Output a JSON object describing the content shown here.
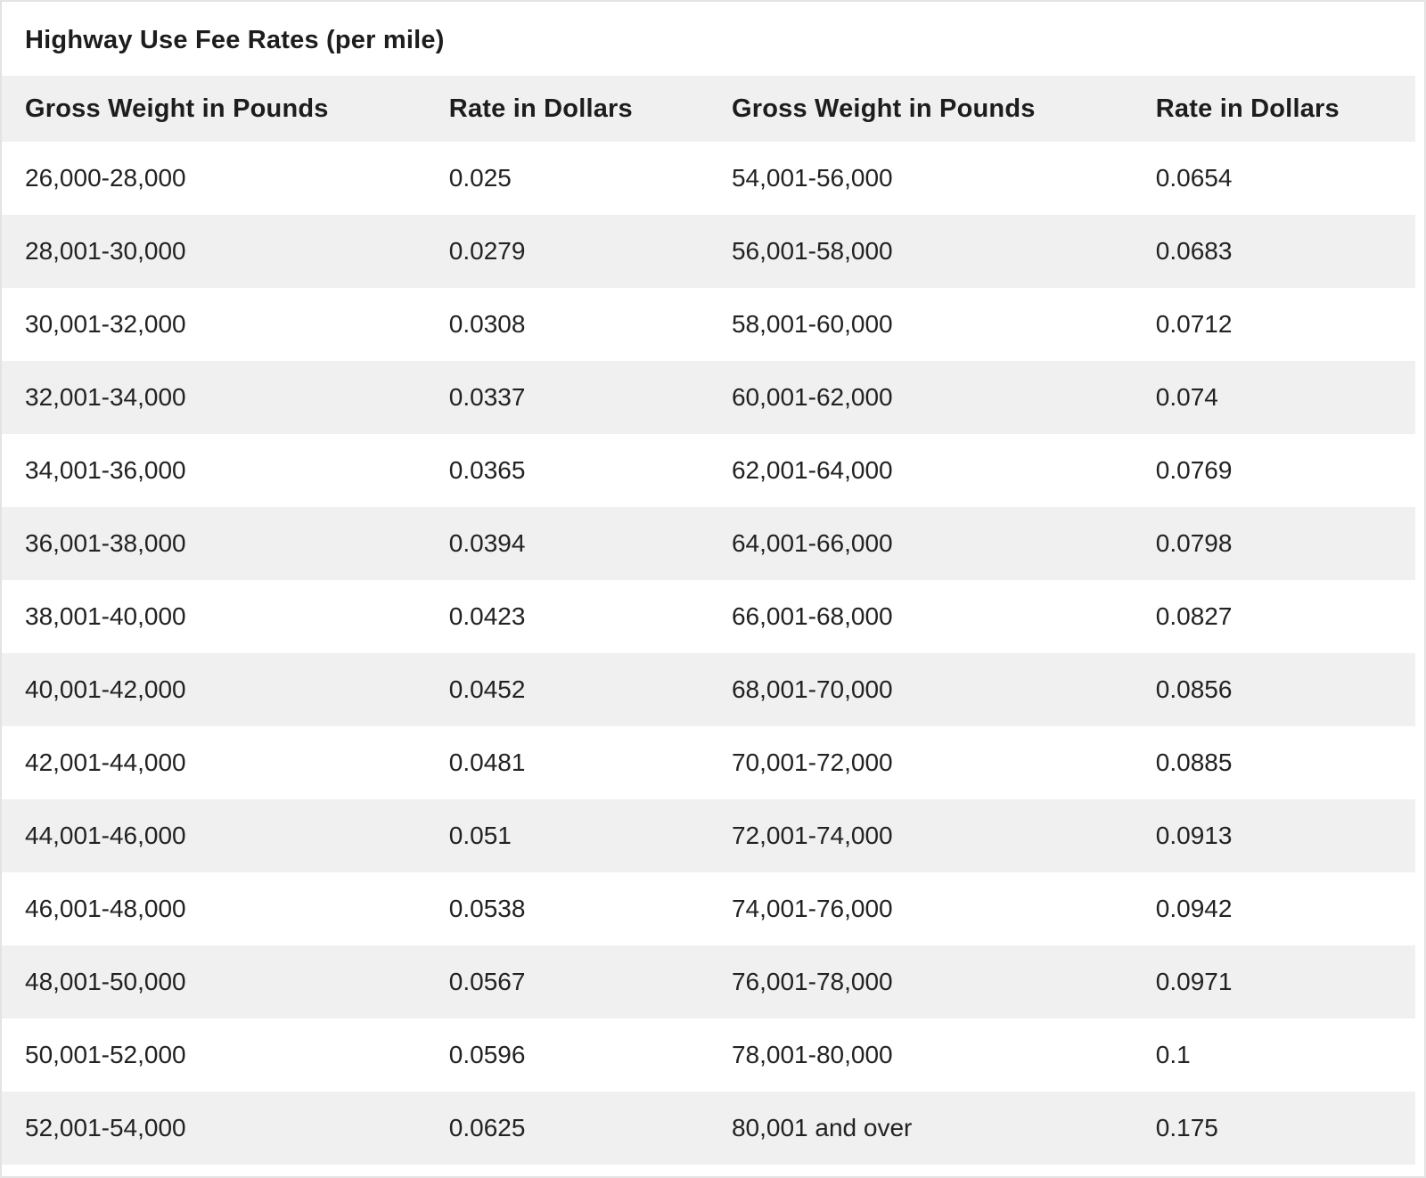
{
  "colors": {
    "header_bg": "#f0f0f0",
    "row_stripe": "#f0f0f0",
    "row_plain": "#ffffff",
    "text": "#1d1d1d",
    "outer_border": "#e3e3e3"
  },
  "chart_data": {
    "type": "table",
    "title": "Highway Use Fee Rates (per mile)",
    "columns": [
      "Gross Weight in Pounds",
      "Rate in Dollars",
      "Gross Weight in Pounds",
      "Rate in Dollars"
    ],
    "rows": [
      [
        "26,000-28,000",
        "0.025",
        "54,001-56,000",
        "0.0654"
      ],
      [
        "28,001-30,000",
        "0.0279",
        "56,001-58,000",
        "0.0683"
      ],
      [
        "30,001-32,000",
        "0.0308",
        "58,001-60,000",
        "0.0712"
      ],
      [
        "32,001-34,000",
        "0.0337",
        "60,001-62,000",
        "0.074"
      ],
      [
        "34,001-36,000",
        "0.0365",
        "62,001-64,000",
        "0.0769"
      ],
      [
        "36,001-38,000",
        "0.0394",
        "64,001-66,000",
        "0.0798"
      ],
      [
        "38,001-40,000",
        "0.0423",
        "66,001-68,000",
        "0.0827"
      ],
      [
        "40,001-42,000",
        "0.0452",
        "68,001-70,000",
        "0.0856"
      ],
      [
        "42,001-44,000",
        "0.0481",
        "70,001-72,000",
        "0.0885"
      ],
      [
        "44,001-46,000",
        "0.051",
        "72,001-74,000",
        "0.0913"
      ],
      [
        "46,001-48,000",
        "0.0538",
        "74,001-76,000",
        "0.0942"
      ],
      [
        "48,001-50,000",
        "0.0567",
        "76,001-78,000",
        "0.0971"
      ],
      [
        "50,001-52,000",
        "0.0596",
        "78,001-80,000",
        "0.1"
      ],
      [
        "52,001-54,000",
        "0.0625",
        "80,001 and over",
        "0.175"
      ]
    ]
  }
}
